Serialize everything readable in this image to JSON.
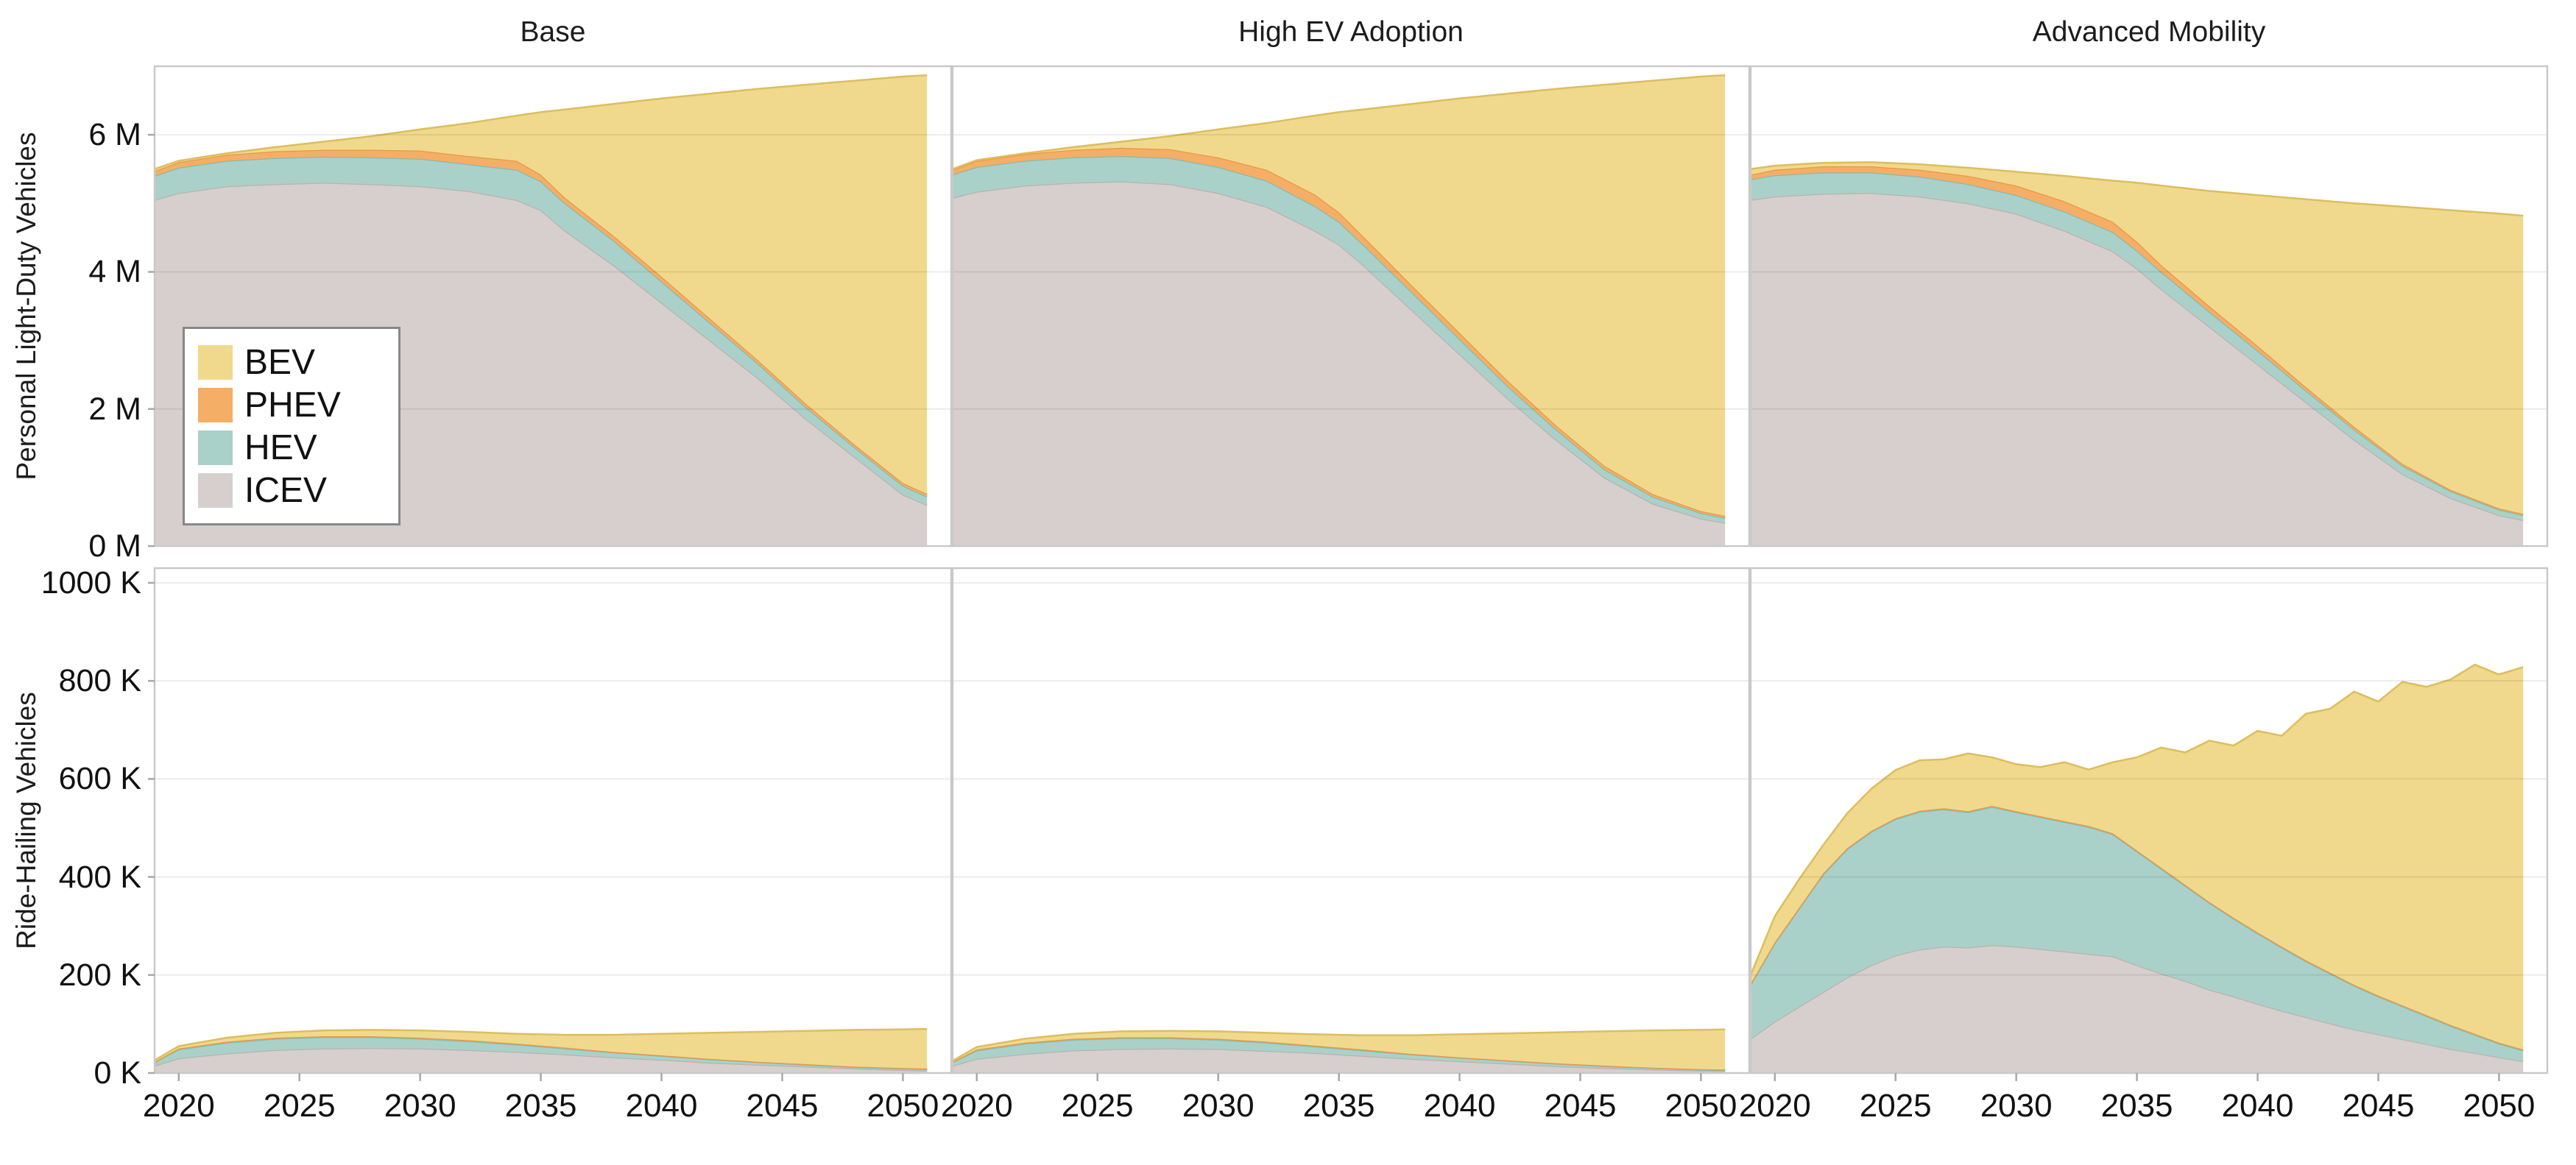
{
  "figure": {
    "background": "#ffffff"
  },
  "columns": [
    {
      "title": "Base"
    },
    {
      "title": "High EV Adoption"
    },
    {
      "title": "Advanced Mobility"
    }
  ],
  "rows": [
    {
      "ylabel": "Personal Light-Duty Vehicles",
      "unit": "M",
      "ymax": 7.0,
      "yticks": [
        {
          "v": 0,
          "label": "0 M"
        },
        {
          "v": 2,
          "label": "2 M"
        },
        {
          "v": 4,
          "label": "4 M"
        },
        {
          "v": 6,
          "label": "6 M"
        }
      ]
    },
    {
      "ylabel": "Ride-Hailing Vehicles",
      "unit": "K",
      "ymax": 1030,
      "yticks": [
        {
          "v": 0,
          "label": "0 K"
        },
        {
          "v": 200,
          "label": "200 K"
        },
        {
          "v": 400,
          "label": "400 K"
        },
        {
          "v": 600,
          "label": "600 K"
        },
        {
          "v": 800,
          "label": "800 K"
        },
        {
          "v": 1000,
          "label": "1000 K"
        }
      ]
    }
  ],
  "xaxis": {
    "domain": [
      2019,
      2052
    ],
    "data_end": 2051,
    "ticks": [
      {
        "v": 2020,
        "label": "2020"
      },
      {
        "v": 2025,
        "label": "2025"
      },
      {
        "v": 2030,
        "label": "2030"
      },
      {
        "v": 2035,
        "label": "2035"
      },
      {
        "v": 2040,
        "label": "2040"
      },
      {
        "v": 2045,
        "label": "2045"
      },
      {
        "v": 2050,
        "label": "2050"
      }
    ]
  },
  "legend": {
    "items": [
      {
        "name": "BEV",
        "label": "BEV",
        "color": "#f0d98c",
        "edge": "#ddbe5e"
      },
      {
        "name": "PHEV",
        "label": "PHEV",
        "color": "#f5ae65",
        "edge": "#ea9747"
      },
      {
        "name": "HEV",
        "label": "HEV",
        "color": "#aad1c9",
        "edge": "#83bcb1"
      },
      {
        "name": "ICEV",
        "label": "ICEV",
        "color": "#d6cfcd",
        "edge": "#bbb1ae"
      }
    ]
  },
  "chart_data": [
    {
      "type": "area",
      "stacked": true,
      "row": 0,
      "col": 0,
      "scenario": "Base",
      "vehicle_class": "Personal Light-Duty Vehicles",
      "units": "millions of vehicles",
      "note": "series values are stacked layer thicknesses, bottom-to-top",
      "years": [
        2019,
        2020,
        2022,
        2024,
        2026,
        2028,
        2030,
        2032,
        2034,
        2035,
        2036,
        2038,
        2040,
        2042,
        2044,
        2046,
        2048,
        2050,
        2051
      ],
      "series": [
        {
          "name": "ICEV",
          "values": [
            5.05,
            5.15,
            5.25,
            5.28,
            5.3,
            5.28,
            5.25,
            5.18,
            5.05,
            4.9,
            4.6,
            4.1,
            3.55,
            3.0,
            2.45,
            1.85,
            1.3,
            0.75,
            0.6
          ]
        },
        {
          "name": "HEV",
          "values": [
            0.35,
            0.37,
            0.37,
            0.38,
            0.38,
            0.39,
            0.4,
            0.39,
            0.44,
            0.42,
            0.4,
            0.36,
            0.31,
            0.26,
            0.21,
            0.17,
            0.14,
            0.13,
            0.12
          ]
        },
        {
          "name": "PHEV",
          "values": [
            0.07,
            0.08,
            0.09,
            0.1,
            0.1,
            0.11,
            0.12,
            0.12,
            0.13,
            0.1,
            0.08,
            0.07,
            0.07,
            0.06,
            0.05,
            0.05,
            0.04,
            0.04,
            0.04
          ]
        },
        {
          "name": "BEV",
          "values": [
            0.03,
            0.02,
            0.02,
            0.06,
            0.12,
            0.2,
            0.31,
            0.48,
            0.66,
            0.91,
            1.29,
            1.92,
            2.6,
            3.28,
            3.96,
            4.66,
            5.31,
            5.93,
            6.11
          ]
        }
      ]
    },
    {
      "type": "area",
      "stacked": true,
      "row": 0,
      "col": 1,
      "scenario": "High EV Adoption",
      "vehicle_class": "Personal Light-Duty Vehicles",
      "units": "millions of vehicles",
      "years": [
        2019,
        2020,
        2022,
        2024,
        2026,
        2028,
        2030,
        2032,
        2034,
        2035,
        2036,
        2038,
        2040,
        2042,
        2044,
        2046,
        2048,
        2050,
        2051
      ],
      "series": [
        {
          "name": "ICEV",
          "values": [
            5.08,
            5.17,
            5.26,
            5.3,
            5.32,
            5.28,
            5.15,
            4.95,
            4.6,
            4.4,
            4.1,
            3.45,
            2.8,
            2.15,
            1.55,
            1.0,
            0.62,
            0.4,
            0.34
          ]
        },
        {
          "name": "HEV",
          "values": [
            0.34,
            0.36,
            0.36,
            0.37,
            0.37,
            0.38,
            0.38,
            0.38,
            0.36,
            0.33,
            0.3,
            0.26,
            0.22,
            0.18,
            0.15,
            0.12,
            0.1,
            0.08,
            0.07
          ]
        },
        {
          "name": "PHEV",
          "values": [
            0.07,
            0.09,
            0.1,
            0.11,
            0.12,
            0.13,
            0.14,
            0.16,
            0.17,
            0.14,
            0.12,
            0.1,
            0.09,
            0.08,
            0.06,
            0.05,
            0.04,
            0.03,
            0.03
          ]
        },
        {
          "name": "BEV",
          "values": [
            0.01,
            0.01,
            0.01,
            0.04,
            0.09,
            0.19,
            0.41,
            0.68,
            1.15,
            1.46,
            1.85,
            2.64,
            3.42,
            4.19,
            4.91,
            5.56,
            6.03,
            6.34,
            6.43
          ]
        }
      ]
    },
    {
      "type": "area",
      "stacked": true,
      "row": 0,
      "col": 2,
      "scenario": "Advanced Mobility",
      "vehicle_class": "Personal Light-Duty Vehicles",
      "units": "millions of vehicles",
      "years": [
        2019,
        2020,
        2022,
        2024,
        2026,
        2028,
        2030,
        2032,
        2034,
        2035,
        2036,
        2038,
        2040,
        2042,
        2044,
        2046,
        2048,
        2050,
        2051
      ],
      "series": [
        {
          "name": "ICEV",
          "values": [
            5.05,
            5.1,
            5.14,
            5.15,
            5.1,
            5.0,
            4.85,
            4.6,
            4.3,
            4.05,
            3.75,
            3.2,
            2.65,
            2.1,
            1.55,
            1.05,
            0.7,
            0.45,
            0.38
          ]
        },
        {
          "name": "HEV",
          "values": [
            0.3,
            0.31,
            0.31,
            0.3,
            0.29,
            0.28,
            0.27,
            0.28,
            0.28,
            0.26,
            0.25,
            0.22,
            0.2,
            0.17,
            0.15,
            0.12,
            0.1,
            0.08,
            0.07
          ]
        },
        {
          "name": "PHEV",
          "values": [
            0.07,
            0.08,
            0.09,
            0.09,
            0.1,
            0.12,
            0.14,
            0.15,
            0.15,
            0.13,
            0.1,
            0.08,
            0.07,
            0.05,
            0.04,
            0.03,
            0.02,
            0.02,
            0.02
          ]
        },
        {
          "name": "BEV",
          "values": [
            0.08,
            0.06,
            0.05,
            0.06,
            0.08,
            0.12,
            0.2,
            0.37,
            0.6,
            0.86,
            1.16,
            1.68,
            2.2,
            2.74,
            3.26,
            3.75,
            4.08,
            4.3,
            4.35
          ]
        }
      ]
    },
    {
      "type": "area",
      "stacked": true,
      "row": 1,
      "col": 0,
      "scenario": "Base",
      "vehicle_class": "Ride-Hailing Vehicles",
      "units": "thousands of vehicles",
      "years": [
        2019,
        2020,
        2022,
        2024,
        2026,
        2028,
        2030,
        2032,
        2034,
        2036,
        2038,
        2040,
        2042,
        2044,
        2046,
        2048,
        2050,
        2051
      ],
      "series": [
        {
          "name": "ICEV",
          "values": [
            15,
            30,
            40,
            47,
            50,
            51,
            50,
            47,
            43,
            38,
            32,
            27,
            21,
            17,
            13,
            9,
            6,
            5
          ]
        },
        {
          "name": "HEV",
          "values": [
            7,
            18,
            22,
            23,
            23,
            22,
            20,
            18,
            15,
            12,
            10,
            8,
            7,
            5,
            4,
            3,
            3,
            3
          ]
        },
        {
          "name": "PHEV",
          "values": [
            1,
            2,
            2,
            2,
            2,
            2,
            2,
            2,
            2,
            2,
            1,
            1,
            1,
            1,
            1,
            1,
            1,
            1
          ]
        },
        {
          "name": "BEV",
          "values": [
            3,
            5,
            8,
            10,
            12,
            13,
            15,
            17,
            20,
            26,
            35,
            44,
            53,
            61,
            68,
            75,
            79,
            81
          ]
        }
      ]
    },
    {
      "type": "area",
      "stacked": true,
      "row": 1,
      "col": 1,
      "scenario": "High EV Adoption",
      "vehicle_class": "Ride-Hailing Vehicles",
      "units": "thousands of vehicles",
      "years": [
        2019,
        2020,
        2022,
        2024,
        2026,
        2028,
        2030,
        2032,
        2034,
        2036,
        2038,
        2040,
        2042,
        2044,
        2046,
        2048,
        2050,
        2051
      ],
      "series": [
        {
          "name": "ICEV",
          "values": [
            15,
            29,
            39,
            46,
            49,
            50,
            49,
            45,
            41,
            35,
            29,
            24,
            19,
            14,
            10,
            7,
            5,
            4
          ]
        },
        {
          "name": "HEV",
          "values": [
            7,
            17,
            21,
            22,
            22,
            21,
            19,
            17,
            13,
            11,
            9,
            7,
            6,
            5,
            4,
            3,
            2,
            2
          ]
        },
        {
          "name": "PHEV",
          "values": [
            1,
            2,
            2,
            2,
            2,
            2,
            2,
            2,
            2,
            2,
            1,
            1,
            1,
            1,
            1,
            1,
            1,
            1
          ]
        },
        {
          "name": "BEV",
          "values": [
            2,
            5,
            8,
            10,
            12,
            13,
            15,
            18,
            23,
            29,
            38,
            47,
            55,
            63,
            70,
            76,
            80,
            82
          ]
        }
      ]
    },
    {
      "type": "area",
      "stacked": true,
      "row": 1,
      "col": 2,
      "scenario": "Advanced Mobility",
      "vehicle_class": "Ride-Hailing Vehicles",
      "units": "thousands of vehicles",
      "years": [
        2019,
        2020,
        2021,
        2022,
        2023,
        2024,
        2025,
        2026,
        2027,
        2028,
        2029,
        2030,
        2031,
        2032,
        2033,
        2034,
        2035,
        2036,
        2037,
        2038,
        2039,
        2040,
        2041,
        2042,
        2043,
        2044,
        2045,
        2046,
        2047,
        2048,
        2049,
        2050,
        2051
      ],
      "series": [
        {
          "name": "ICEV",
          "values": [
            70,
            105,
            135,
            165,
            195,
            220,
            240,
            252,
            258,
            256,
            261,
            258,
            253,
            248,
            243,
            238,
            220,
            203,
            188,
            170,
            156,
            141,
            127,
            114,
            101,
            89,
            79,
            69,
            59,
            49,
            41,
            32,
            24
          ]
        },
        {
          "name": "HEV",
          "values": [
            110,
            160,
            200,
            240,
            262,
            272,
            278,
            281,
            280,
            276,
            282,
            274,
            269,
            264,
            259,
            249,
            232,
            214,
            194,
            177,
            159,
            144,
            129,
            114,
            102,
            89,
            77,
            67,
            57,
            47,
            37,
            28,
            22
          ]
        },
        {
          "name": "PHEV",
          "values": [
            2,
            2,
            2,
            2,
            2,
            2,
            2,
            2,
            2,
            2,
            2,
            2,
            2,
            2,
            2,
            2,
            2,
            2,
            2,
            2,
            2,
            2,
            2,
            2,
            2,
            2,
            2,
            2,
            2,
            2,
            2,
            2,
            2
          ]
        },
        {
          "name": "BEV",
          "values": [
            18,
            53,
            58,
            58,
            71,
            86,
            98,
            103,
            100,
            118,
            99,
            96,
            100,
            120,
            115,
            145,
            190,
            245,
            270,
            329,
            351,
            411,
            430,
            503,
            538,
            598,
            600,
            660,
            670,
            705,
            753,
            751,
            780
          ]
        }
      ]
    }
  ]
}
